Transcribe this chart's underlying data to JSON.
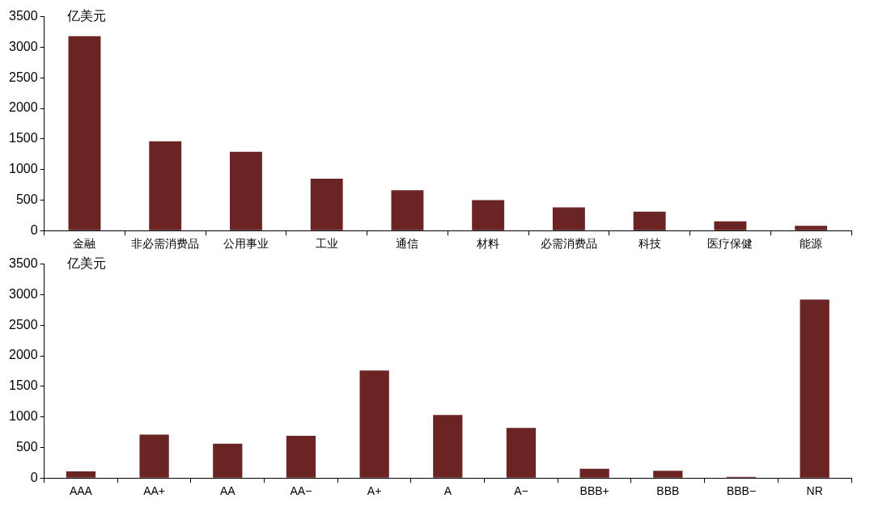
{
  "chart_data": [
    {
      "type": "bar",
      "ylabel": "亿美元",
      "categories": [
        "金融",
        "非必需消费品",
        "公用事业",
        "工业",
        "通信",
        "材料",
        "必需消费品",
        "科技",
        "医疗保健",
        "能源"
      ],
      "values": [
        3180,
        1460,
        1290,
        850,
        660,
        500,
        380,
        310,
        150,
        80
      ],
      "color": "#6b2424",
      "ylim": [
        0,
        3500
      ],
      "yticks": [
        0,
        500,
        1000,
        1500,
        2000,
        2500,
        3000,
        3500
      ],
      "grid": false,
      "legend": false
    },
    {
      "type": "bar",
      "ylabel": "亿美元",
      "categories": [
        "AAA",
        "AA+",
        "AA",
        "AA−",
        "A+",
        "A",
        "A−",
        "BBB+",
        "BBB",
        "BBB−",
        "NR"
      ],
      "values": [
        110,
        710,
        560,
        690,
        1760,
        1030,
        820,
        150,
        120,
        20,
        2920
      ],
      "color": "#6b2424",
      "ylim": [
        0,
        3500
      ],
      "yticks": [
        0,
        500,
        1000,
        1500,
        2000,
        2500,
        3000,
        3500
      ],
      "grid": false,
      "legend": false
    }
  ]
}
